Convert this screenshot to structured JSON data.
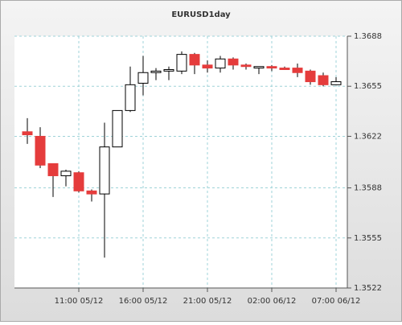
{
  "chart_data": {
    "type": "candlestick",
    "title": "EURUSD1day",
    "categories": [
      null,
      null,
      null,
      null,
      "11:00 05/12",
      null,
      null,
      null,
      null,
      "16:00 05/12",
      null,
      null,
      null,
      null,
      "21:00 05/12",
      null,
      null,
      null,
      null,
      "02:00 06/12",
      null,
      null,
      null,
      null,
      "07:00 06/12"
    ],
    "open": [
      1.3625,
      1.3622,
      1.3604,
      1.3596,
      1.3598,
      1.3586,
      1.3584,
      1.3615,
      1.3639,
      1.3657,
      1.3664,
      1.3665,
      1.3665,
      1.3676,
      1.3669,
      1.3667,
      1.3673,
      1.3669,
      1.3667,
      1.3668,
      1.3667,
      1.3667,
      1.3665,
      1.3662,
      1.3656
    ],
    "high": [
      1.3634,
      1.3628,
      1.3604,
      1.36,
      1.3599,
      1.3587,
      1.3631,
      1.3639,
      1.3668,
      1.3675,
      1.3667,
      1.3668,
      1.3678,
      1.3677,
      1.3672,
      1.3675,
      1.3674,
      1.367,
      1.3668,
      1.3669,
      1.3668,
      1.367,
      1.3666,
      1.3664,
      1.3661
    ],
    "low": [
      1.3617,
      1.3601,
      1.3582,
      1.3589,
      1.3585,
      1.3579,
      1.3542,
      1.3615,
      1.3638,
      1.3649,
      1.3659,
      1.3659,
      1.3663,
      1.3663,
      1.3664,
      1.3664,
      1.3666,
      1.3666,
      1.3663,
      1.3665,
      1.3666,
      1.3661,
      1.3656,
      1.3655,
      1.3656
    ],
    "close": [
      1.3623,
      1.3603,
      1.3596,
      1.3599,
      1.3586,
      1.3584,
      1.3615,
      1.3639,
      1.3656,
      1.3664,
      1.3665,
      1.3666,
      1.3676,
      1.3669,
      1.3667,
      1.3673,
      1.3669,
      1.3668,
      1.3668,
      1.3667,
      1.3666,
      1.3664,
      1.3658,
      1.3656,
      1.3658
    ],
    "up_color": "#ffffff",
    "down_color": "#e53c3c",
    "ylim": [
      1.3522,
      1.3688
    ],
    "yticks": [
      1.3522,
      1.3555,
      1.3588,
      1.3622,
      1.3655,
      1.3688
    ],
    "grid": true
  }
}
